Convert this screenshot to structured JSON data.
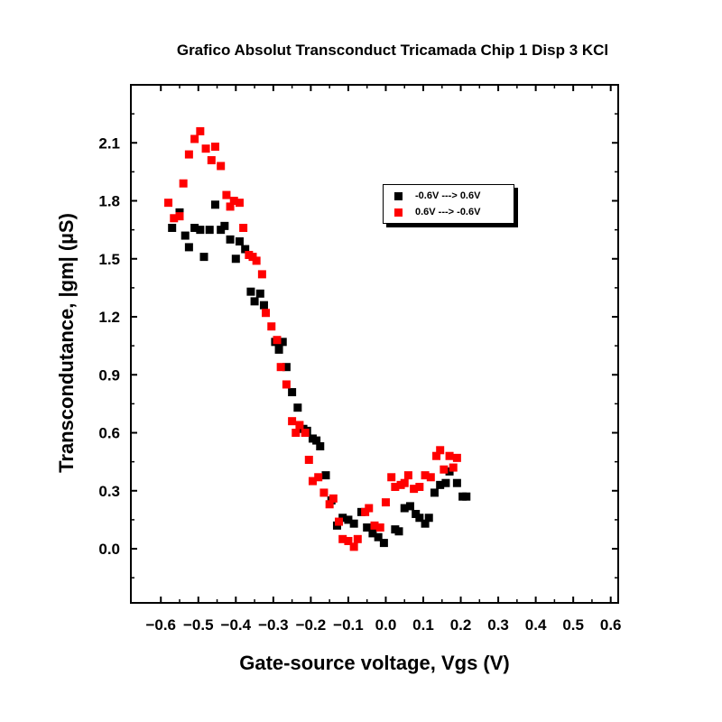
{
  "chart_data": {
    "type": "scatter",
    "title": "Grafico Absolut Transconduct Tricamada Chip 1 Disp 3 KCl",
    "xlabel": "Gate-source voltage, Vgs (V)",
    "ylabel": "Transcondutance, |gm| (µS)",
    "xlim": [
      -0.68,
      0.62
    ],
    "ylim": [
      -0.28,
      2.4
    ],
    "xticks": [
      -0.6,
      -0.5,
      -0.4,
      -0.3,
      -0.2,
      -0.1,
      0.0,
      0.1,
      0.2,
      0.3,
      0.4,
      0.5,
      0.6
    ],
    "xtick_labels": [
      "−0.6",
      "−0.5",
      "−0.4",
      "−0.3",
      "−0.2",
      "−0.1",
      "0.0",
      "0.1",
      "0.2",
      "0.3",
      "0.4",
      "0.5",
      "0.6"
    ],
    "yticks": [
      0.0,
      0.3,
      0.6,
      0.9,
      1.2,
      1.5,
      1.8,
      2.1
    ],
    "ytick_labels": [
      "0.0",
      "0.3",
      "0.6",
      "0.9",
      "1.2",
      "1.5",
      "1.8",
      "2.1"
    ],
    "grid": false,
    "legend_position": "top-center",
    "series": [
      {
        "name": "-0.6V ---> 0.6V",
        "color": "#000000",
        "marker": "square",
        "points": [
          [
            -0.57,
            1.66
          ],
          [
            -0.55,
            1.74
          ],
          [
            -0.535,
            1.62
          ],
          [
            -0.525,
            1.56
          ],
          [
            -0.51,
            1.66
          ],
          [
            -0.495,
            1.65
          ],
          [
            -0.485,
            1.51
          ],
          [
            -0.47,
            1.65
          ],
          [
            -0.455,
            1.78
          ],
          [
            -0.44,
            1.65
          ],
          [
            -0.43,
            1.67
          ],
          [
            -0.415,
            1.6
          ],
          [
            -0.4,
            1.5
          ],
          [
            -0.39,
            1.59
          ],
          [
            -0.375,
            1.55
          ],
          [
            -0.36,
            1.33
          ],
          [
            -0.35,
            1.28
          ],
          [
            -0.335,
            1.32
          ],
          [
            -0.325,
            1.26
          ],
          [
            -0.295,
            1.07
          ],
          [
            -0.285,
            1.03
          ],
          [
            -0.275,
            1.07
          ],
          [
            -0.265,
            0.94
          ],
          [
            -0.25,
            0.81
          ],
          [
            -0.235,
            0.73
          ],
          [
            -0.22,
            0.62
          ],
          [
            -0.21,
            0.61
          ],
          [
            -0.195,
            0.57
          ],
          [
            -0.185,
            0.56
          ],
          [
            -0.175,
            0.53
          ],
          [
            -0.16,
            0.38
          ],
          [
            -0.145,
            0.25
          ],
          [
            -0.13,
            0.12
          ],
          [
            -0.115,
            0.16
          ],
          [
            -0.1,
            0.15
          ],
          [
            -0.085,
            0.13
          ],
          [
            -0.065,
            0.19
          ],
          [
            -0.05,
            0.11
          ],
          [
            -0.035,
            0.08
          ],
          [
            -0.02,
            0.06
          ],
          [
            -0.005,
            0.03
          ],
          [
            0.025,
            0.1
          ],
          [
            0.035,
            0.09
          ],
          [
            0.05,
            0.21
          ],
          [
            0.065,
            0.22
          ],
          [
            0.08,
            0.18
          ],
          [
            0.09,
            0.16
          ],
          [
            0.105,
            0.13
          ],
          [
            0.115,
            0.16
          ],
          [
            0.13,
            0.29
          ],
          [
            0.145,
            0.33
          ],
          [
            0.16,
            0.34
          ],
          [
            0.17,
            0.4
          ],
          [
            0.19,
            0.34
          ],
          [
            0.205,
            0.27
          ],
          [
            0.215,
            0.27
          ]
        ]
      },
      {
        "name": "0.6V ---> -0.6V",
        "color": "#ff0000",
        "marker": "square",
        "points": [
          [
            -0.58,
            1.79
          ],
          [
            -0.565,
            1.71
          ],
          [
            -0.55,
            1.72
          ],
          [
            -0.54,
            1.89
          ],
          [
            -0.525,
            2.04
          ],
          [
            -0.51,
            2.12
          ],
          [
            -0.495,
            2.16
          ],
          [
            -0.48,
            2.07
          ],
          [
            -0.465,
            2.01
          ],
          [
            -0.455,
            2.08
          ],
          [
            -0.44,
            1.98
          ],
          [
            -0.425,
            1.83
          ],
          [
            -0.415,
            1.77
          ],
          [
            -0.405,
            1.8
          ],
          [
            -0.39,
            1.79
          ],
          [
            -0.38,
            1.66
          ],
          [
            -0.365,
            1.52
          ],
          [
            -0.355,
            1.51
          ],
          [
            -0.345,
            1.49
          ],
          [
            -0.33,
            1.42
          ],
          [
            -0.32,
            1.22
          ],
          [
            -0.305,
            1.15
          ],
          [
            -0.29,
            1.08
          ],
          [
            -0.28,
            0.94
          ],
          [
            -0.265,
            0.85
          ],
          [
            -0.25,
            0.66
          ],
          [
            -0.24,
            0.6
          ],
          [
            -0.23,
            0.64
          ],
          [
            -0.215,
            0.6
          ],
          [
            -0.205,
            0.46
          ],
          [
            -0.195,
            0.35
          ],
          [
            -0.18,
            0.37
          ],
          [
            -0.165,
            0.29
          ],
          [
            -0.15,
            0.23
          ],
          [
            -0.14,
            0.26
          ],
          [
            -0.125,
            0.14
          ],
          [
            -0.115,
            0.05
          ],
          [
            -0.1,
            0.04
          ],
          [
            -0.085,
            0.01
          ],
          [
            -0.075,
            0.05
          ],
          [
            -0.055,
            0.19
          ],
          [
            -0.045,
            0.21
          ],
          [
            -0.03,
            0.12
          ],
          [
            -0.015,
            0.11
          ],
          [
            0.0,
            0.24
          ],
          [
            0.015,
            0.37
          ],
          [
            0.025,
            0.32
          ],
          [
            0.04,
            0.33
          ],
          [
            0.05,
            0.34
          ],
          [
            0.06,
            0.38
          ],
          [
            0.075,
            0.31
          ],
          [
            0.09,
            0.32
          ],
          [
            0.105,
            0.38
          ],
          [
            0.12,
            0.37
          ],
          [
            0.135,
            0.48
          ],
          [
            0.145,
            0.51
          ],
          [
            0.155,
            0.41
          ],
          [
            0.17,
            0.48
          ],
          [
            0.18,
            0.42
          ],
          [
            0.19,
            0.47
          ]
        ]
      }
    ]
  }
}
